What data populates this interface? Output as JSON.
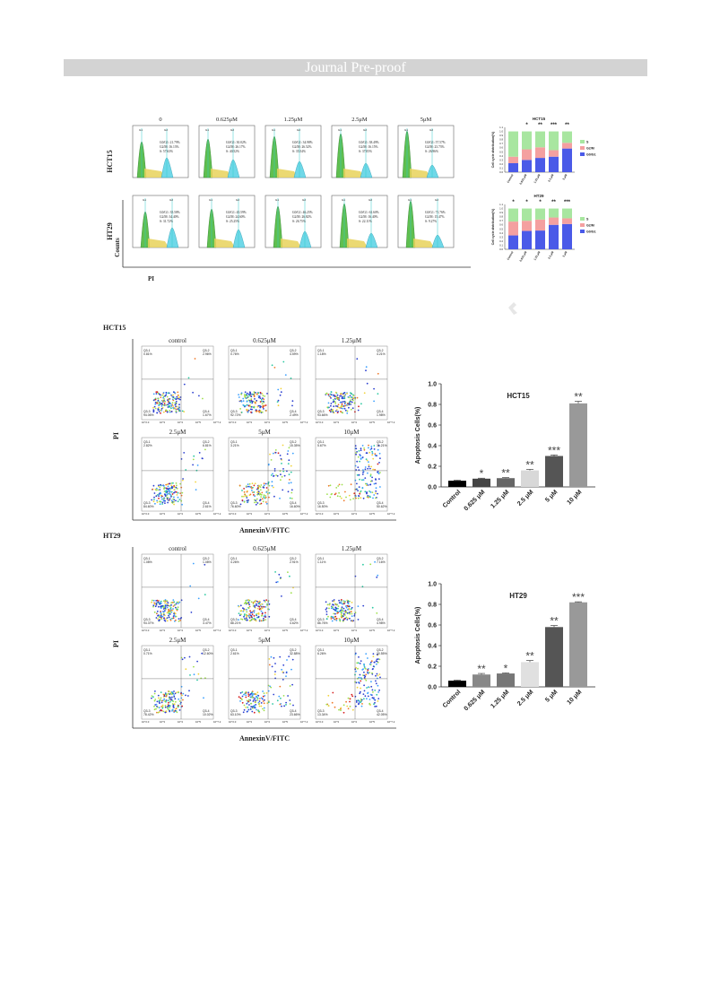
{
  "banner": {
    "text": "Journal Pre-proof"
  },
  "cell_cycle": {
    "row_labels": [
      "HCT15",
      "HT29"
    ],
    "panel_titles": [
      "0",
      "0.625μM",
      "1.25μM",
      "2.5μM",
      "5μM"
    ],
    "ylabel": "Counts",
    "xlabel": "PI",
    "peak_labels": [
      "G1",
      "G2"
    ],
    "hct15_stats": [
      [
        "G0/G1: 21.79%",
        "G2/M: 16.13%",
        "S: 57.63%"
      ],
      [
        "G0/G1: 30.02%",
        "G2/M: 26.17%",
        "S: 40.52%"
      ],
      [
        "G0/G1: 34.98%",
        "G2/M: 26.52%",
        "S: 35.54%"
      ],
      [
        "G0/G1: 38.49%",
        "G2/M: 16.15%",
        "S: 37.05%"
      ],
      [
        "G0/G1: 57.57%",
        "G2/M: 23.73%",
        "S: 26.96%"
      ]
    ],
    "ht29_stats": [
      [
        "G0/G1: 35.58%",
        "G2/M: 34.40%",
        "S: 31.72%"
      ],
      [
        "G0/G1: 45.59%",
        "G2/M: 24.60%",
        "S: 25.25%"
      ],
      [
        "G0/G1: 46.25%",
        "G2/M: 26.82%",
        "S: 26.75%"
      ],
      [
        "G0/G1: 61.60%",
        "G2/M: 16.40%",
        "S: 22.11%"
      ],
      [
        "G0/G1: 71.76%",
        "G2/M: 15.47%",
        "S: 9.27%"
      ]
    ]
  },
  "cycle_bars": {
    "hct15_title": "HCT15",
    "ht29_title": "HT29",
    "ylabel": "Cell cycle distribution(%)",
    "legend": [
      "S",
      "G2/M",
      "G0/G1"
    ],
    "colors": {
      "S": "#a8e6a0",
      "G2M": "#f4a0a0",
      "G0G1": "#4a5ae8"
    },
    "categories": [
      "Control",
      "0.625 μM",
      "1.25 μM",
      "2.5 μM",
      "5 μM"
    ],
    "yticks": [
      "0.0",
      "0.1",
      "0.2",
      "0.3",
      "0.4",
      "0.5",
      "0.6",
      "0.7",
      "0.8",
      "0.9",
      "1.0",
      "1.1"
    ],
    "hct15": {
      "G0G1": [
        0.22,
        0.3,
        0.35,
        0.38,
        0.58
      ],
      "G2M": [
        0.16,
        0.26,
        0.26,
        0.16,
        0.14
      ],
      "S": [
        0.62,
        0.44,
        0.39,
        0.46,
        0.28
      ],
      "sig": [
        "",
        "*",
        "**",
        "***",
        "**"
      ]
    },
    "ht29": {
      "G0G1": [
        0.34,
        0.45,
        0.46,
        0.6,
        0.62
      ],
      "G2M": [
        0.34,
        0.25,
        0.27,
        0.18,
        0.14
      ],
      "S": [
        0.32,
        0.3,
        0.27,
        0.22,
        0.24
      ],
      "sig": [
        "*",
        "*",
        "*",
        "**",
        "***"
      ]
    }
  },
  "flow": {
    "hct15": {
      "title": "HCT15",
      "panel_titles": [
        "control",
        "0.625μM",
        "1.25μM",
        "2.5μM",
        "5μM",
        "10μM"
      ],
      "q1": [
        "0.81%",
        "0.76%",
        "1.18%",
        "2.82%",
        "3.21%",
        "5.67%"
      ],
      "q2": [
        "2.96%",
        "4.59%",
        "4.21%",
        "6.81%",
        "15.35%",
        "31.21%"
      ],
      "q3": [
        "94.06%",
        "92.72%",
        "93.66%",
        "84.60%",
        "76.60%",
        "16.50%"
      ],
      "q4": [
        "1.67%",
        "2.49%",
        "1.98%",
        "2.61%",
        "16.60%",
        "50.62%"
      ]
    },
    "ht29": {
      "title": "HT29",
      "panel_titles": [
        "control",
        "0.625μM",
        "1.25μM",
        "2.5μM",
        "5μM",
        "10μM"
      ],
      "q1": [
        "1.08%",
        "4.26%",
        "1.11%",
        "0.71%",
        "2.61%",
        "6.26%"
      ],
      "q2": [
        "1.08%",
        "2.91%",
        "7.16%",
        "12.60%",
        "32.88%",
        "30.55%"
      ],
      "q3": [
        "94.37%",
        "88.21%",
        "86.76%",
        "78.42%",
        "63.10%",
        "13.34%"
      ],
      "q4": [
        "3.47%",
        "4.62%",
        "4.98%",
        "10.02%",
        "23.66%",
        "42.05%"
      ]
    },
    "quadrant_labels": [
      "Q3-1",
      "Q3-2",
      "Q3-3",
      "Q3-4"
    ],
    "ylabel": "PI",
    "xlabel": "AnnexinV/FITC",
    "decades": [
      "10^2.0",
      "10^3",
      "10^4",
      "10^5",
      "10^7.2"
    ]
  },
  "chart_data": [
    {
      "type": "bar",
      "title": "HCT15",
      "ylabel": "Apoptosis Cells(%)",
      "categories": [
        "Control",
        "0.625 μM",
        "1.25 μM",
        "2.5 μM",
        "5 μM",
        "10 μM"
      ],
      "values": [
        0.06,
        0.08,
        0.085,
        0.16,
        0.3,
        0.81
      ],
      "errors": [
        0.005,
        0.005,
        0.005,
        0.01,
        0.01,
        0.02
      ],
      "significance": [
        "",
        "*",
        "**",
        "**",
        "***",
        "**"
      ],
      "colors": [
        "#000000",
        "#444444",
        "#666666",
        "#d8d8d8",
        "#555555",
        "#999999"
      ],
      "ylim": [
        0,
        1.0
      ],
      "yticks": [
        "0.0",
        "0.2",
        "0.4",
        "0.6",
        "0.8",
        "1.0"
      ]
    },
    {
      "type": "bar",
      "title": "HT29",
      "ylabel": "Apoptosis Cells(%)",
      "categories": [
        "Control",
        "0.625 μM",
        "1.25 μM",
        "2.5 μM",
        "5 μM",
        "10 μM"
      ],
      "values": [
        0.06,
        0.12,
        0.13,
        0.24,
        0.58,
        0.82
      ],
      "errors": [
        0.005,
        0.01,
        0.005,
        0.015,
        0.015,
        0.005
      ],
      "significance": [
        "",
        "**",
        "*",
        "**",
        "**",
        "***"
      ],
      "colors": [
        "#000000",
        "#888888",
        "#777777",
        "#e0e0e0",
        "#555555",
        "#999999"
      ],
      "ylim": [
        0,
        1.0
      ],
      "yticks": [
        "0.0",
        "0.2",
        "0.4",
        "0.6",
        "0.8",
        "1.0"
      ]
    }
  ]
}
